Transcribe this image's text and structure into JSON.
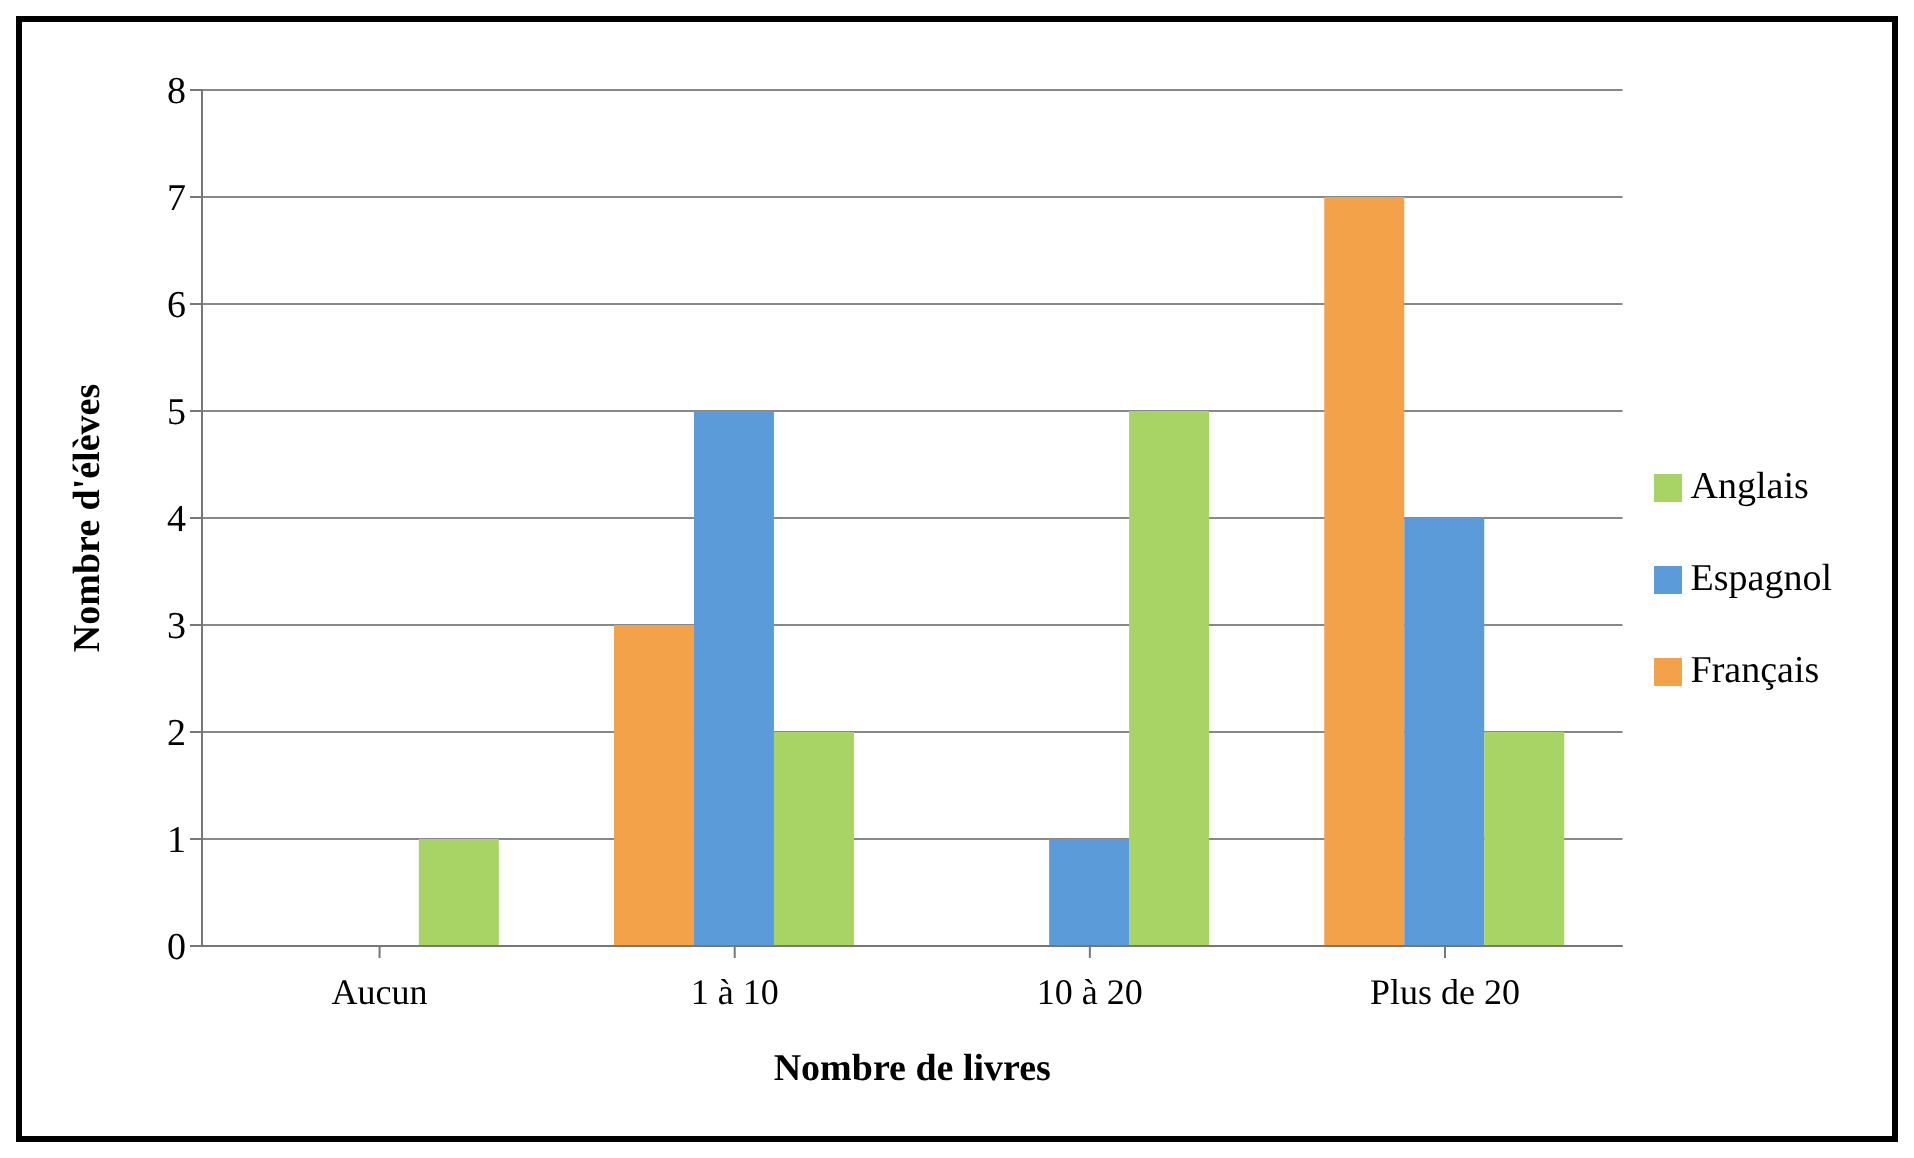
{
  "chart_data": {
    "type": "bar",
    "xlabel": "Nombre de livres",
    "ylabel": "Nombre d'élèves",
    "categories": [
      "Aucun",
      "1 à 10",
      "10 à 20",
      "Plus de 20"
    ],
    "series": [
      {
        "name": "Français",
        "color": "#f4a24a",
        "values": [
          0,
          3,
          0,
          7
        ]
      },
      {
        "name": "Espagnol",
        "color": "#5b9bd9",
        "values": [
          0,
          5,
          1,
          4
        ]
      },
      {
        "name": "Anglais",
        "color": "#a8d466",
        "values": [
          1,
          2,
          5,
          2
        ]
      }
    ],
    "ylim": [
      0,
      8
    ],
    "yticks": [
      0,
      1,
      2,
      3,
      4,
      5,
      6,
      7,
      8
    ],
    "grid": "y",
    "legend": "right"
  }
}
